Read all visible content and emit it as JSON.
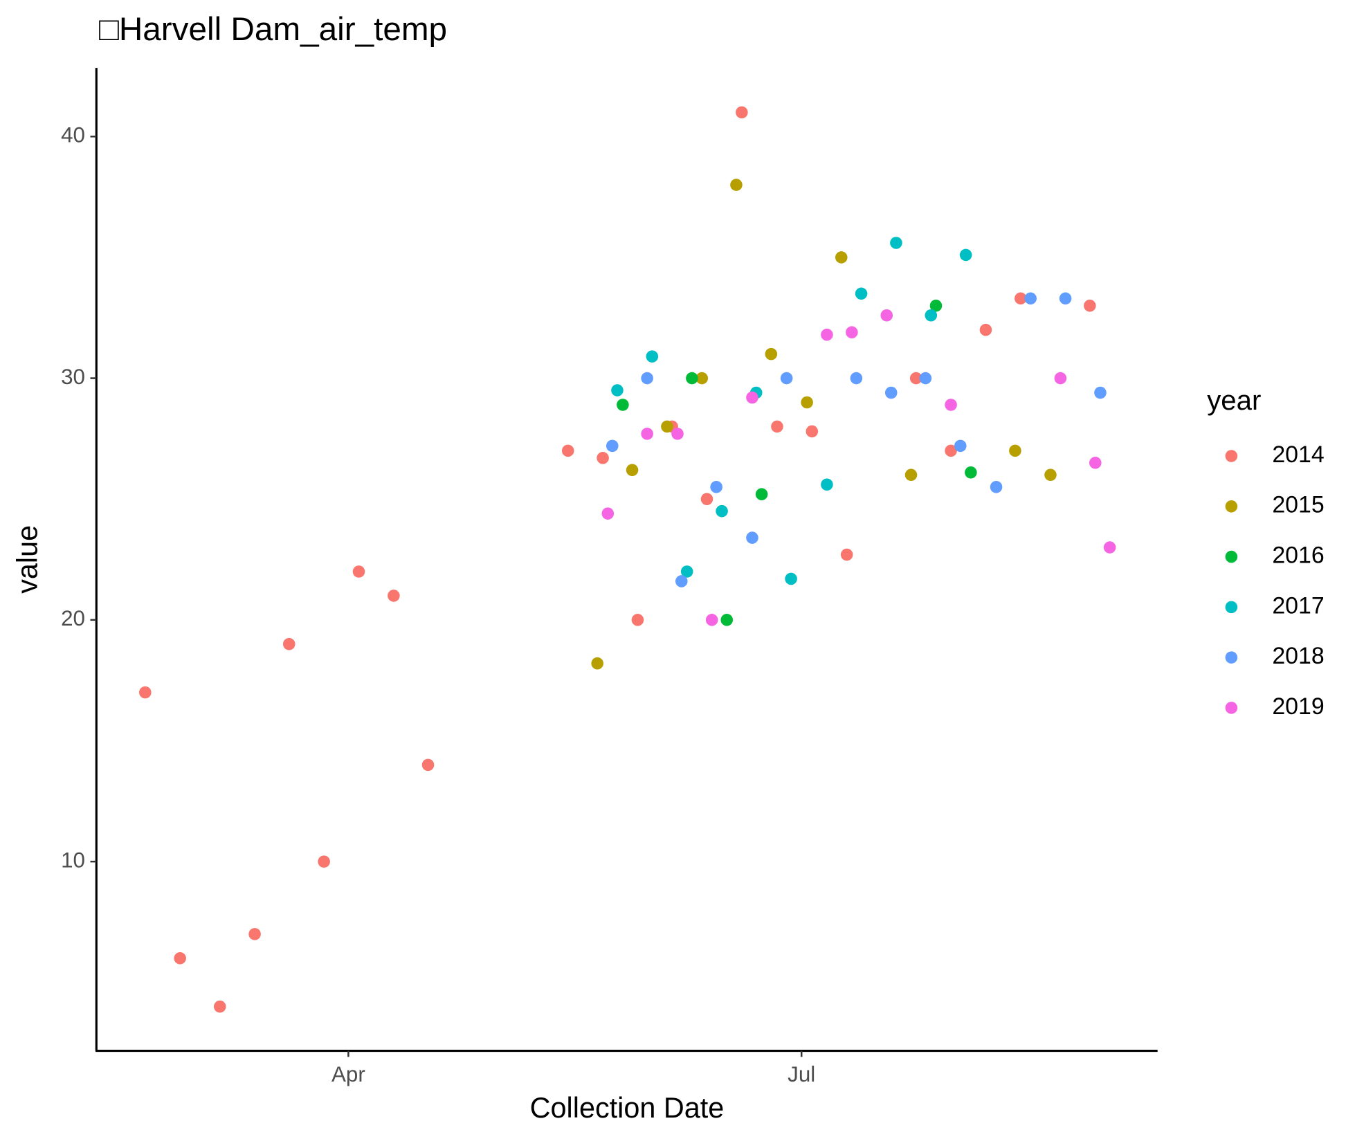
{
  "chart_data": {
    "type": "scatter",
    "title": "□Harvell Dam_air_temp",
    "x_label": "Collection Date",
    "y_label": "value",
    "legend_title": "year",
    "legend_position": "right",
    "xlim": [
      40.4,
      253.5
    ],
    "xticks": [
      {
        "value": 91,
        "label": "Apr"
      },
      {
        "value": 182,
        "label": "Jul"
      }
    ],
    "ylim": [
      2.17,
      42.84
    ],
    "yticks": [
      10,
      20,
      30,
      40
    ],
    "series": [
      {
        "name": "2014",
        "color": "#F8766D",
        "x": [
          50.2,
          57.2,
          65.2,
          72.2,
          79.1,
          86.1,
          93.1,
          100.1,
          107.0,
          135.1,
          142.1,
          149.1,
          156.0,
          163.0,
          170.0,
          177.1,
          184.1,
          191.1,
          205.0,
          212.0,
          219.0,
          226.0,
          239.9
        ],
        "values": [
          17.0,
          6.0,
          4.0,
          7.0,
          19.0,
          10.0,
          22.0,
          21.0,
          14.0,
          27.0,
          26.7,
          20.0,
          28.0,
          25.0,
          41.0,
          28.0,
          27.8,
          22.7,
          30.0,
          27.0,
          32.0,
          33.3,
          33.0
        ]
      },
      {
        "name": "2015",
        "color": "#B79F00",
        "x": [
          141.0,
          148.0,
          155.0,
          162.0,
          168.9,
          175.9,
          183.1,
          190.0,
          204.0,
          224.9,
          232.0
        ],
        "values": [
          18.2,
          26.2,
          28.0,
          30.0,
          38.0,
          31.0,
          29.0,
          35.0,
          26.0,
          27.0,
          26.0
        ]
      },
      {
        "name": "2016",
        "color": "#00BA38",
        "x": [
          146.1,
          160.0,
          167.0,
          174.0,
          209.0,
          216.0
        ],
        "values": [
          28.9,
          30.0,
          20.0,
          25.2,
          33.0,
          26.1
        ]
      },
      {
        "name": "2017",
        "color": "#00BFC4",
        "x": [
          145.0,
          152.0,
          159.0,
          166.0,
          172.9,
          179.9,
          187.1,
          194.0,
          201.0,
          208.0,
          215.0
        ],
        "values": [
          29.5,
          30.9,
          22.0,
          24.5,
          29.4,
          21.7,
          25.6,
          33.5,
          35.6,
          32.6,
          35.1
        ]
      },
      {
        "name": "2018",
        "color": "#619CFF",
        "x": [
          144.0,
          151.0,
          157.9,
          164.9,
          172.1,
          179.0,
          193.0,
          200.0,
          206.9,
          213.9,
          221.1,
          228.0,
          235.0,
          242.0
        ],
        "values": [
          27.2,
          30.0,
          21.6,
          25.5,
          23.4,
          30.0,
          30.0,
          29.4,
          30.0,
          27.2,
          25.5,
          33.3,
          33.3,
          29.4
        ]
      },
      {
        "name": "2019",
        "color": "#F564E3",
        "x": [
          143.1,
          151.0,
          157.1,
          164.0,
          172.1,
          187.1,
          192.1,
          199.1,
          212.0,
          234.0,
          241.0,
          243.9
        ],
        "values": [
          24.4,
          27.7,
          27.7,
          20.0,
          29.2,
          31.8,
          31.9,
          32.6,
          28.9,
          30.0,
          26.5,
          23.0
        ]
      }
    ]
  }
}
